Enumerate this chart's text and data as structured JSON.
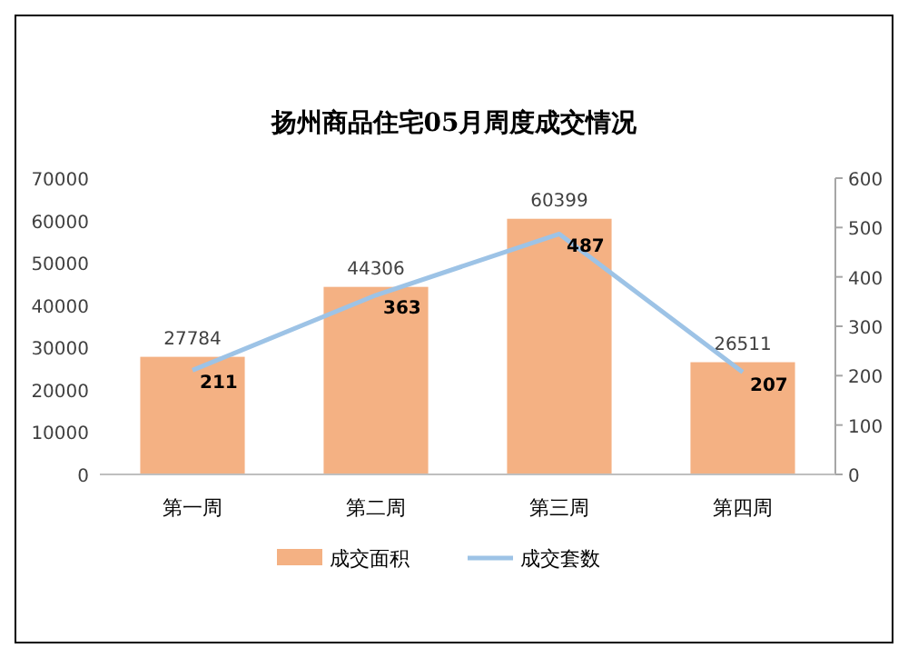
{
  "chart_data": {
    "type": "bar",
    "title": "扬州商品住宅05月周度成交情况",
    "categories": [
      "第一周",
      "第二周",
      "第三周",
      "第四周"
    ],
    "series": [
      {
        "name": "成交面积",
        "color": "#f4b183",
        "values": [
          27784,
          44306,
          60399,
          26511
        ]
      },
      {
        "name": "成交套数",
        "type": "line",
        "axis": "y2",
        "color": "#9dc3e6",
        "values": [
          211,
          363,
          487,
          207
        ]
      }
    ],
    "ylim": [
      0,
      70000
    ],
    "yticks": [
      0,
      10000,
      20000,
      30000,
      40000,
      50000,
      60000,
      70000
    ],
    "y2lim": [
      0,
      600
    ],
    "y2ticks": [
      0,
      100,
      200,
      300,
      400,
      500,
      600
    ],
    "data_labels": true,
    "legend": "bottom",
    "grid": false,
    "marker": "none"
  }
}
